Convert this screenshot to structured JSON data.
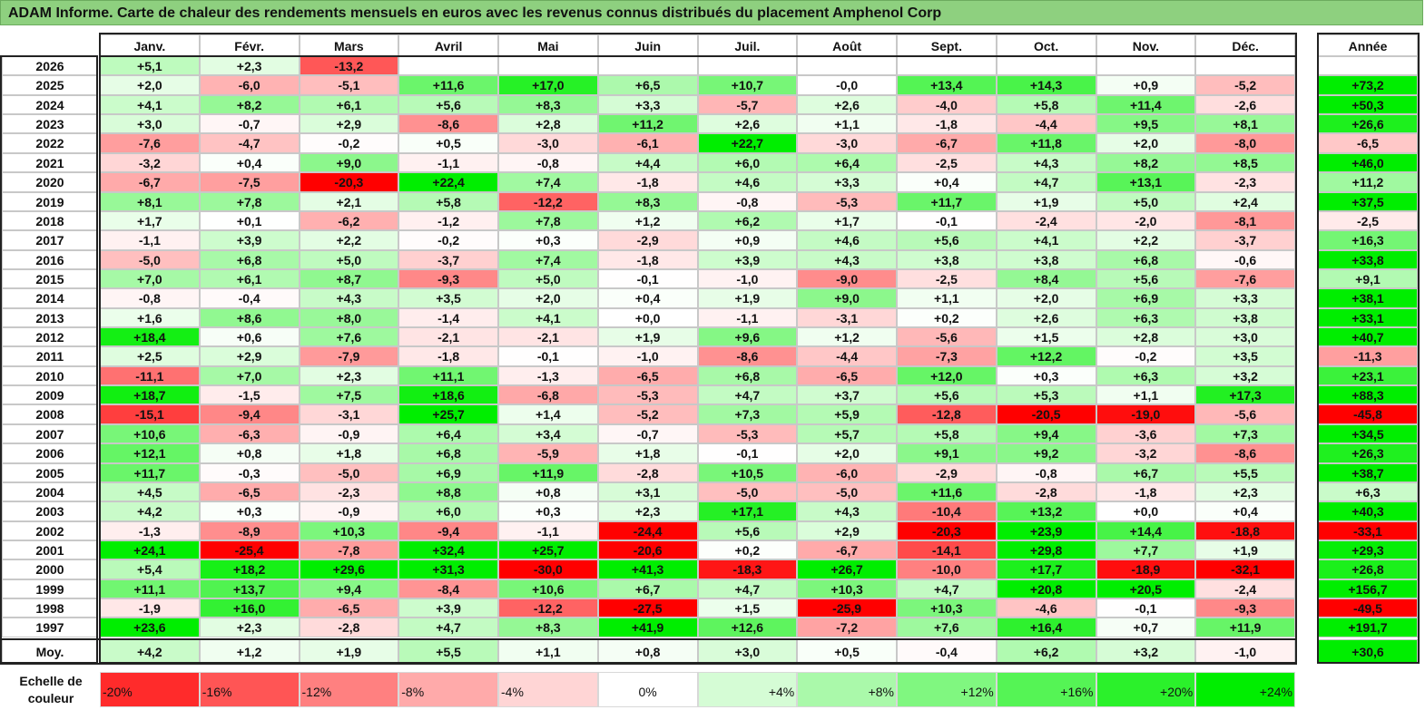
{
  "title": "ADAM Informe. Carte de chaleur des rendements mensuels en euros avec les revenus connus distribués du placement Amphenol Corp",
  "chart_data": {
    "type": "heatmap",
    "title": "ADAM Informe. Carte de chaleur des rendements mensuels en euros avec les revenus connus distribués du placement Amphenol Corp",
    "months": [
      "Janv.",
      "Févr.",
      "Mars",
      "Avril",
      "Mai",
      "Juin",
      "Juil.",
      "Août",
      "Sept.",
      "Oct.",
      "Nov.",
      "Déc."
    ],
    "year_header": "Année",
    "rows": [
      {
        "year": "2026",
        "values": [
          "+5,1",
          "+2,3",
          "-13,2",
          "",
          "",
          "",
          "",
          "",
          "",
          "",
          "",
          ""
        ],
        "annual": ""
      },
      {
        "year": "2025",
        "values": [
          "+2,0",
          "-6,0",
          "-5,1",
          "+11,6",
          "+17,0",
          "+6,5",
          "+10,7",
          "-0,0",
          "+13,4",
          "+14,3",
          "+0,9",
          "-5,2"
        ],
        "annual": "+73,2"
      },
      {
        "year": "2024",
        "values": [
          "+4,1",
          "+8,2",
          "+6,1",
          "+5,6",
          "+8,3",
          "+3,3",
          "-5,7",
          "+2,6",
          "-4,0",
          "+5,8",
          "+11,4",
          "-2,6"
        ],
        "annual": "+50,3"
      },
      {
        "year": "2023",
        "values": [
          "+3,0",
          "-0,7",
          "+2,9",
          "-8,6",
          "+2,8",
          "+11,2",
          "+2,6",
          "+1,1",
          "-1,8",
          "-4,4",
          "+9,5",
          "+8,1"
        ],
        "annual": "+26,6"
      },
      {
        "year": "2022",
        "values": [
          "-7,6",
          "-4,7",
          "-0,2",
          "+0,5",
          "-3,0",
          "-6,1",
          "+22,7",
          "-3,0",
          "-6,7",
          "+11,8",
          "+2,0",
          "-8,0"
        ],
        "annual": "-6,5"
      },
      {
        "year": "2021",
        "values": [
          "-3,2",
          "+0,4",
          "+9,0",
          "-1,1",
          "-0,8",
          "+4,4",
          "+6,0",
          "+6,4",
          "-2,5",
          "+4,3",
          "+8,2",
          "+8,5"
        ],
        "annual": "+46,0"
      },
      {
        "year": "2020",
        "values": [
          "-6,7",
          "-7,5",
          "-20,3",
          "+22,4",
          "+7,4",
          "-1,8",
          "+4,6",
          "+3,3",
          "+0,4",
          "+4,7",
          "+13,1",
          "-2,3"
        ],
        "annual": "+11,2"
      },
      {
        "year": "2019",
        "values": [
          "+8,1",
          "+7,8",
          "+2,1",
          "+5,8",
          "-12,2",
          "+8,3",
          "-0,8",
          "-5,3",
          "+11,7",
          "+1,9",
          "+5,0",
          "+2,4"
        ],
        "annual": "+37,5"
      },
      {
        "year": "2018",
        "values": [
          "+1,7",
          "+0,1",
          "-6,2",
          "-1,2",
          "+7,8",
          "+1,2",
          "+6,2",
          "+1,7",
          "-0,1",
          "-2,4",
          "-2,0",
          "-8,1"
        ],
        "annual": "-2,5"
      },
      {
        "year": "2017",
        "values": [
          "-1,1",
          "+3,9",
          "+2,2",
          "-0,2",
          "+0,3",
          "-2,9",
          "+0,9",
          "+4,6",
          "+5,6",
          "+4,1",
          "+2,2",
          "-3,7"
        ],
        "annual": "+16,3"
      },
      {
        "year": "2016",
        "values": [
          "-5,0",
          "+6,8",
          "+5,0",
          "-3,7",
          "+7,4",
          "-1,8",
          "+3,9",
          "+4,3",
          "+3,8",
          "+3,8",
          "+6,8",
          "-0,6"
        ],
        "annual": "+33,8"
      },
      {
        "year": "2015",
        "values": [
          "+7,0",
          "+6,1",
          "+8,7",
          "-9,3",
          "+5,0",
          "-0,1",
          "-1,0",
          "-9,0",
          "-2,5",
          "+8,4",
          "+5,6",
          "-7,6"
        ],
        "annual": "+9,1"
      },
      {
        "year": "2014",
        "values": [
          "-0,8",
          "-0,4",
          "+4,3",
          "+3,5",
          "+2,0",
          "+0,4",
          "+1,9",
          "+9,0",
          "+1,1",
          "+2,0",
          "+6,9",
          "+3,3"
        ],
        "annual": "+38,1"
      },
      {
        "year": "2013",
        "values": [
          "+1,6",
          "+8,6",
          "+8,0",
          "-1,4",
          "+4,1",
          "+0,0",
          "-1,1",
          "-3,1",
          "+0,2",
          "+2,6",
          "+6,3",
          "+3,8"
        ],
        "annual": "+33,1"
      },
      {
        "year": "2012",
        "values": [
          "+18,4",
          "+0,6",
          "+7,6",
          "-2,1",
          "-2,1",
          "+1,9",
          "+9,6",
          "+1,2",
          "-5,6",
          "+1,5",
          "+2,8",
          "+3,0"
        ],
        "annual": "+40,7"
      },
      {
        "year": "2011",
        "values": [
          "+2,5",
          "+2,9",
          "-7,9",
          "-1,8",
          "-0,1",
          "-1,0",
          "-8,6",
          "-4,4",
          "-7,3",
          "+12,2",
          "-0,2",
          "+3,5"
        ],
        "annual": "-11,3"
      },
      {
        "year": "2010",
        "values": [
          "-11,1",
          "+7,0",
          "+2,3",
          "+11,1",
          "-1,3",
          "-6,5",
          "+6,8",
          "-6,5",
          "+12,0",
          "+0,3",
          "+6,3",
          "+3,2"
        ],
        "annual": "+23,1"
      },
      {
        "year": "2009",
        "values": [
          "+18,7",
          "-1,5",
          "+7,5",
          "+18,6",
          "-6,8",
          "-5,3",
          "+4,7",
          "+3,7",
          "+5,6",
          "+5,3",
          "+1,1",
          "+17,3"
        ],
        "annual": "+88,3"
      },
      {
        "year": "2008",
        "values": [
          "-15,1",
          "-9,4",
          "-3,1",
          "+25,7",
          "+1,4",
          "-5,2",
          "+7,3",
          "+5,9",
          "-12,8",
          "-20,5",
          "-19,0",
          "-5,6"
        ],
        "annual": "-45,8"
      },
      {
        "year": "2007",
        "values": [
          "+10,6",
          "-6,3",
          "-0,9",
          "+6,4",
          "+3,4",
          "-0,7",
          "-5,3",
          "+5,7",
          "+5,8",
          "+9,4",
          "-3,6",
          "+7,3"
        ],
        "annual": "+34,5"
      },
      {
        "year": "2006",
        "values": [
          "+12,1",
          "+0,8",
          "+1,8",
          "+6,8",
          "-5,9",
          "+1,8",
          "-0,1",
          "+2,0",
          "+9,1",
          "+9,2",
          "-3,2",
          "-8,6"
        ],
        "annual": "+26,3"
      },
      {
        "year": "2005",
        "values": [
          "+11,7",
          "-0,3",
          "-5,0",
          "+6,9",
          "+11,9",
          "-2,8",
          "+10,5",
          "-6,0",
          "-2,9",
          "-0,8",
          "+6,7",
          "+5,5"
        ],
        "annual": "+38,7"
      },
      {
        "year": "2004",
        "values": [
          "+4,5",
          "-6,5",
          "-2,3",
          "+8,8",
          "+0,8",
          "+3,1",
          "-5,0",
          "-5,0",
          "+11,6",
          "-2,8",
          "-1,8",
          "+2,3"
        ],
        "annual": "+6,3"
      },
      {
        "year": "2003",
        "values": [
          "+4,2",
          "+0,3",
          "-0,9",
          "+6,0",
          "+0,3",
          "+2,3",
          "+17,1",
          "+4,3",
          "-10,4",
          "+13,2",
          "+0,0",
          "+0,4"
        ],
        "annual": "+40,3"
      },
      {
        "year": "2002",
        "values": [
          "-1,3",
          "-8,9",
          "+10,3",
          "-9,4",
          "-1,1",
          "-24,4",
          "+5,6",
          "+2,9",
          "-20,3",
          "+23,9",
          "+14,4",
          "-18,8"
        ],
        "annual": "-33,1"
      },
      {
        "year": "2001",
        "values": [
          "+24,1",
          "-25,4",
          "-7,8",
          "+32,4",
          "+25,7",
          "-20,6",
          "+0,2",
          "-6,7",
          "-14,1",
          "+29,8",
          "+7,7",
          "+1,9"
        ],
        "annual": "+29,3"
      },
      {
        "year": "2000",
        "values": [
          "+5,4",
          "+18,2",
          "+29,6",
          "+31,3",
          "-30,0",
          "+41,3",
          "-18,3",
          "+26,7",
          "-10,0",
          "+17,7",
          "-18,9",
          "-32,1"
        ],
        "annual": "+26,8"
      },
      {
        "year": "1999",
        "values": [
          "+11,1",
          "+13,7",
          "+9,4",
          "-8,4",
          "+10,6",
          "+6,7",
          "+4,7",
          "+10,3",
          "+4,7",
          "+20,8",
          "+20,5",
          "-2,4"
        ],
        "annual": "+156,7"
      },
      {
        "year": "1998",
        "values": [
          "-1,9",
          "+16,0",
          "-6,5",
          "+3,9",
          "-12,2",
          "-27,5",
          "+1,5",
          "-25,9",
          "+10,3",
          "-4,6",
          "-0,1",
          "-9,3"
        ],
        "annual": "-49,5"
      },
      {
        "year": "1997",
        "values": [
          "+23,6",
          "+2,3",
          "-2,8",
          "+4,7",
          "+8,3",
          "+41,9",
          "+12,6",
          "-7,2",
          "+7,6",
          "+16,4",
          "+0,7",
          "+11,9"
        ],
        "annual": "+191,7"
      }
    ],
    "average": {
      "label": "Moy.",
      "values": [
        "+4,2",
        "+1,2",
        "+1,9",
        "+5,5",
        "+1,1",
        "+0,8",
        "+3,0",
        "+0,5",
        "-0,4",
        "+6,2",
        "+3,2",
        "-1,0"
      ],
      "annual": "+30,6"
    },
    "scale": {
      "label": "Echelle de couleur",
      "steps": [
        "-20%",
        "-16%",
        "-12%",
        "-8%",
        "-4%",
        "0%",
        "+4%",
        "+8%",
        "+12%",
        "+16%",
        "+20%",
        "+24%"
      ]
    },
    "colors": {
      "negative_max": "#ff0000",
      "neutral": "#ffffff",
      "positive_max": "#00ee00",
      "title_bg": "#8ed07f"
    }
  }
}
